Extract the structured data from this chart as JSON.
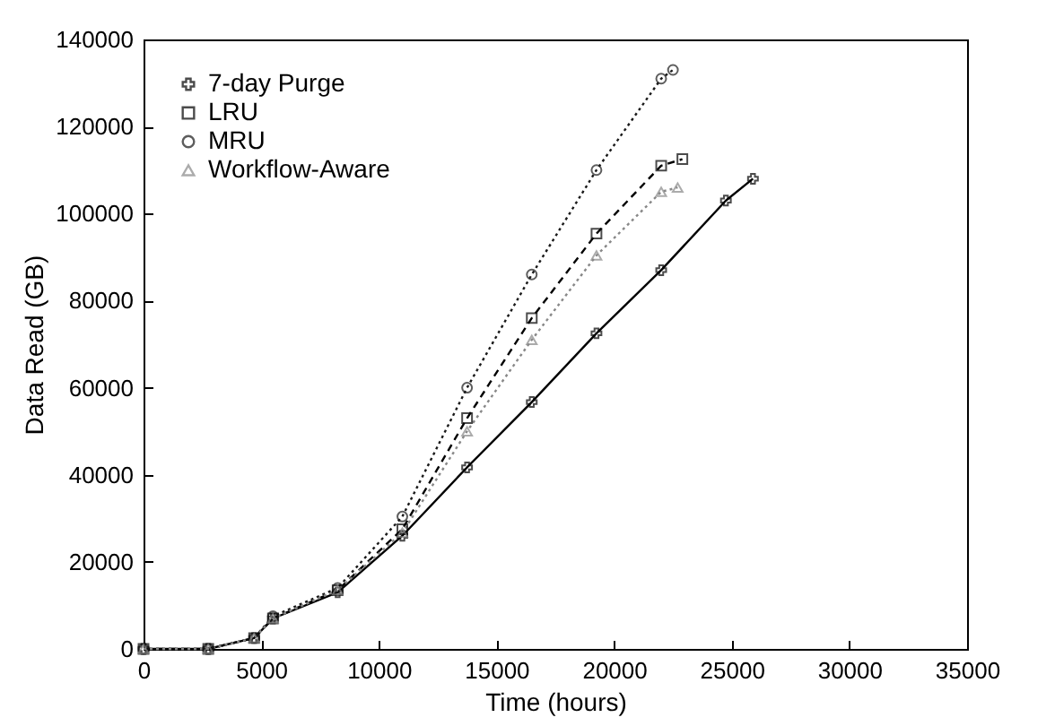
{
  "chart_data": {
    "type": "line",
    "xlabel": "Time (hours)",
    "ylabel": "Data Read (GB)",
    "xlim": [
      0,
      35000
    ],
    "xticks": [
      0,
      5000,
      10000,
      15000,
      20000,
      25000,
      30000,
      35000
    ],
    "ylim": [
      0,
      140000
    ],
    "yticks": [
      0,
      20000,
      40000,
      60000,
      80000,
      100000,
      120000,
      140000
    ],
    "grid": false,
    "legend": "top left",
    "series": [
      {
        "name": "7-day Purge",
        "color": "#000000",
        "marker": "cross",
        "line_style": "solid",
        "x": [
          0,
          2750,
          4700,
          5500,
          8250,
          11000,
          13750,
          16500,
          19250,
          22000,
          24750,
          25900
        ],
        "values": [
          0,
          0,
          2500,
          7000,
          13000,
          26000,
          41700,
          56700,
          72500,
          87000,
          103000,
          108000
        ]
      },
      {
        "name": "LRU",
        "color": "#000000",
        "marker": "square",
        "line_style": "dashed",
        "x": [
          0,
          2750,
          4700,
          5500,
          8250,
          11000,
          13750,
          16500,
          19250,
          22000,
          22900
        ],
        "values": [
          0,
          0,
          2500,
          7000,
          13500,
          27500,
          53000,
          76000,
          95400,
          111000,
          112500
        ]
      },
      {
        "name": "MRU",
        "color": "#1a1a1a",
        "marker": "circle",
        "line_style": "dotted",
        "x": [
          0,
          2750,
          4700,
          5500,
          8250,
          11000,
          13750,
          16500,
          19250,
          22000,
          22500
        ],
        "values": [
          0,
          0,
          2500,
          7500,
          14000,
          30400,
          60000,
          86000,
          110000,
          131000,
          133000
        ]
      },
      {
        "name": "Workflow-Aware",
        "color": "#888888",
        "marker": "triangle",
        "line_style": "dotted",
        "x": [
          0,
          2750,
          4700,
          5500,
          8250,
          11000,
          13750,
          16500,
          19250,
          22000,
          22700
        ],
        "values": [
          0,
          0,
          2500,
          7000,
          13500,
          26700,
          50000,
          71000,
          90400,
          105000,
          106000
        ]
      }
    ]
  }
}
